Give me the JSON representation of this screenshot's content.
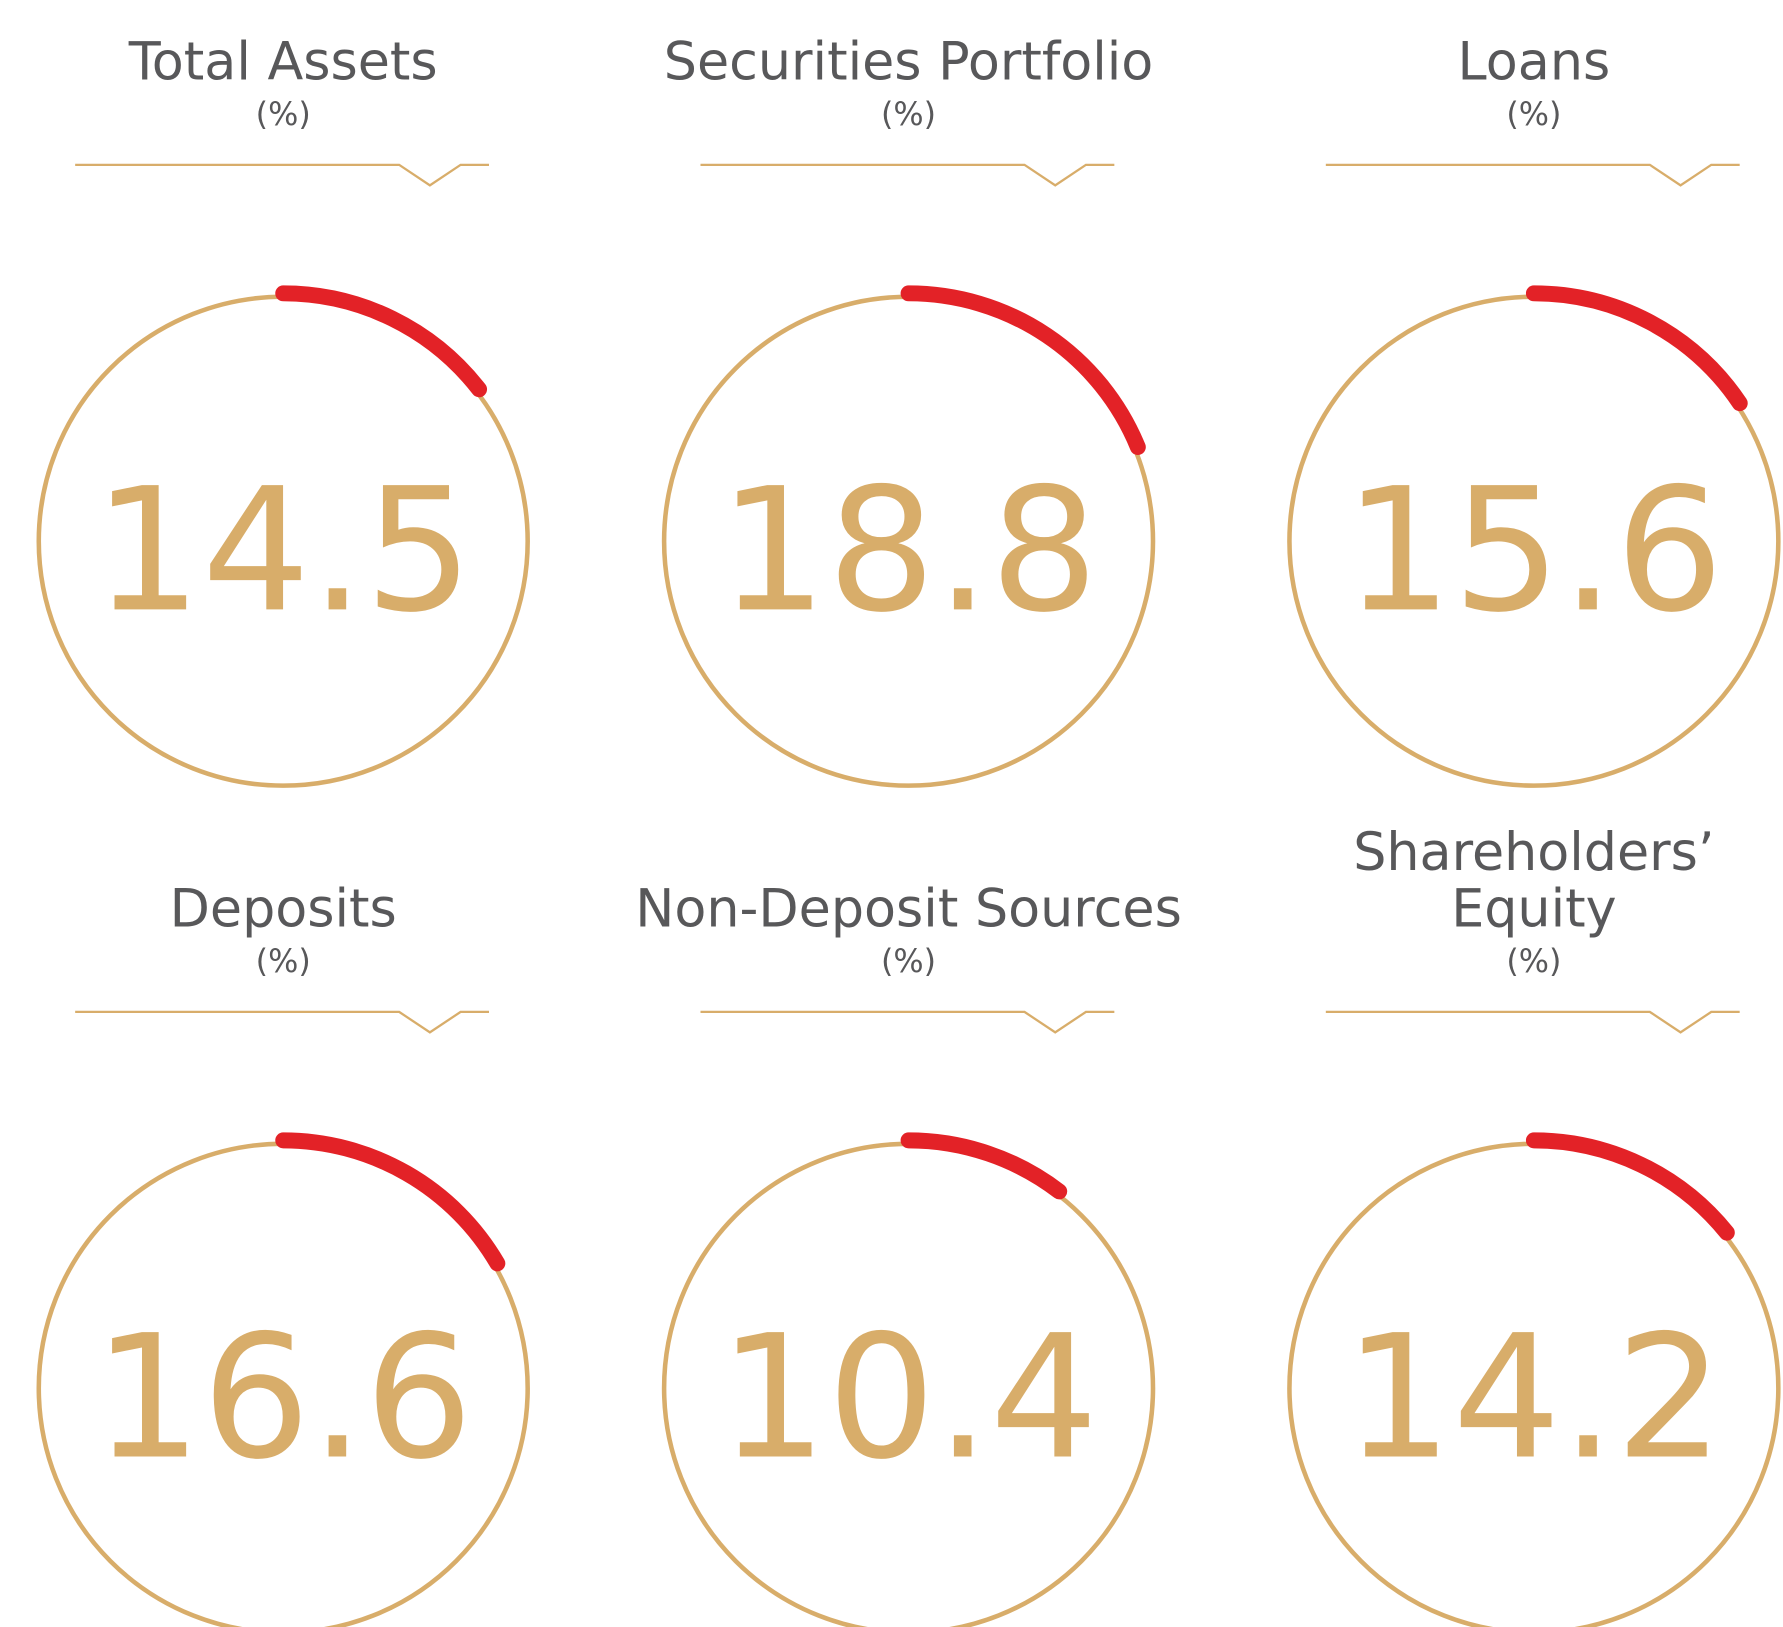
{
  "chart_data": [
    {
      "type": "gauge",
      "title": "Total Assets",
      "unit": "(%)",
      "value": 14.5,
      "ylim": [
        0,
        100
      ],
      "color": "#e32227",
      "track_color": "#d8ad6a"
    },
    {
      "type": "gauge",
      "title": "Securities Portfolio",
      "unit": "(%)",
      "value": 18.8,
      "ylim": [
        0,
        100
      ],
      "color": "#e32227",
      "track_color": "#d8ad6a"
    },
    {
      "type": "gauge",
      "title": "Loans",
      "unit": "(%)",
      "value": 15.6,
      "ylim": [
        0,
        100
      ],
      "color": "#e32227",
      "track_color": "#d8ad6a"
    },
    {
      "type": "gauge",
      "title": "Deposits",
      "unit": "(%)",
      "value": 16.6,
      "ylim": [
        0,
        100
      ],
      "color": "#e32227",
      "track_color": "#d8ad6a"
    },
    {
      "type": "gauge",
      "title": "Non-Deposit Sources",
      "unit": "(%)",
      "value": 10.4,
      "ylim": [
        0,
        100
      ],
      "color": "#e32227",
      "track_color": "#d8ad6a"
    },
    {
      "type": "gauge",
      "title": "Shareholders’\nEquity",
      "unit": "(%)",
      "value": 14.2,
      "ylim": [
        0,
        100
      ],
      "color": "#e32227",
      "track_color": "#d8ad6a"
    }
  ]
}
